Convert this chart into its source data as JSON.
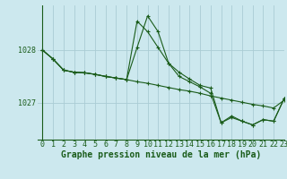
{
  "background_color": "#cce8ee",
  "grid_color": "#aaccd4",
  "line_color": "#1a5c1a",
  "xlabel": "Graphe pression niveau de la mer (hPa)",
  "ylabel_ticks": [
    1027,
    1028
  ],
  "xlim": [
    -0.5,
    23
  ],
  "ylim": [
    1026.3,
    1028.85
  ],
  "x_ticks": [
    0,
    1,
    2,
    3,
    4,
    5,
    6,
    7,
    8,
    9,
    10,
    11,
    12,
    13,
    14,
    15,
    16,
    17,
    18,
    19,
    20,
    21,
    22,
    23
  ],
  "series1_x": [
    0,
    1,
    2,
    3,
    4,
    5,
    6,
    7,
    8,
    9,
    10,
    11,
    12,
    13,
    14,
    15,
    16,
    17,
    18,
    19,
    20,
    21,
    22,
    23
  ],
  "series1_y": [
    1028.0,
    1027.83,
    1027.62,
    1027.58,
    1027.57,
    1027.54,
    1027.5,
    1027.47,
    1027.44,
    1027.4,
    1027.37,
    1027.33,
    1027.29,
    1027.25,
    1027.22,
    1027.18,
    1027.13,
    1027.09,
    1027.05,
    1027.01,
    1026.97,
    1026.94,
    1026.9,
    1027.05
  ],
  "series2_x": [
    0,
    1,
    2,
    3,
    4,
    5,
    6,
    7,
    8,
    9,
    10,
    11,
    12,
    13,
    14,
    15,
    16,
    17,
    18,
    19,
    20,
    21,
    22,
    23
  ],
  "series2_y": [
    1028.0,
    1027.83,
    1027.62,
    1027.58,
    1027.57,
    1027.54,
    1027.5,
    1027.47,
    1027.44,
    1028.55,
    1028.35,
    1028.05,
    1027.75,
    1027.5,
    1027.4,
    1027.3,
    1027.18,
    1026.62,
    1026.72,
    1026.65,
    1026.58,
    1026.68,
    1026.65,
    1027.08
  ],
  "series3_x": [
    0,
    1,
    2,
    3,
    4,
    5,
    6,
    7,
    8,
    9,
    10,
    11,
    12,
    13,
    14,
    15,
    16,
    17,
    18,
    19,
    20,
    21,
    22,
    23
  ],
  "series3_y": [
    1028.0,
    1027.83,
    1027.62,
    1027.58,
    1027.57,
    1027.54,
    1027.5,
    1027.47,
    1027.44,
    1028.05,
    1028.65,
    1028.35,
    1027.75,
    1027.58,
    1027.45,
    1027.33,
    1027.28,
    1026.62,
    1026.75,
    1026.65,
    1026.58,
    1026.68,
    1026.65,
    1027.08
  ],
  "tick_fontsize": 6.0,
  "xlabel_fontsize": 7.0
}
